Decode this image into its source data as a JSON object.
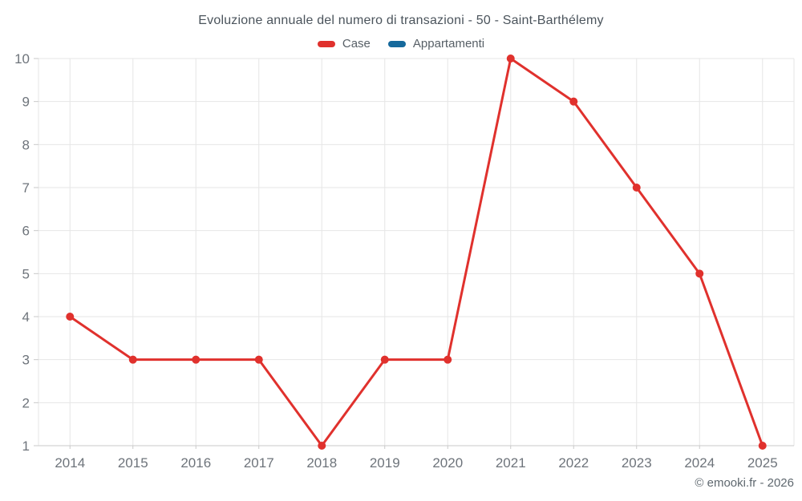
{
  "title": "Evoluzione annuale del numero di transazioni - 50 - Saint-Barthélemy",
  "footer": {
    "copyright": "© emooki.fr - 2026"
  },
  "colors": {
    "grid": "#e6e6e6",
    "axis": "#c9c9c9",
    "tick_label": "#6e747b",
    "title_text": "#4b545c"
  },
  "chart_data": {
    "type": "line",
    "title": "Evoluzione annuale del numero di transazioni - 50 - Saint-Barthélemy",
    "categories": [
      "2014",
      "2015",
      "2016",
      "2017",
      "2018",
      "2019",
      "2020",
      "2021",
      "2022",
      "2023",
      "2024",
      "2025"
    ],
    "series": [
      {
        "name": "Case",
        "color": "#e0312d",
        "values": [
          4,
          3,
          3,
          3,
          1,
          3,
          3,
          10,
          9,
          7,
          5,
          1
        ]
      },
      {
        "name": "Appartamenti",
        "color": "#16699c",
        "values": []
      }
    ],
    "xlabel": "",
    "ylabel": "",
    "ylim": [
      1,
      10
    ],
    "yticks": [
      1,
      2,
      3,
      4,
      5,
      6,
      7,
      8,
      9,
      10
    ],
    "grid": true,
    "legend_position": "top",
    "marker_radius": 5,
    "line_width": 3
  }
}
